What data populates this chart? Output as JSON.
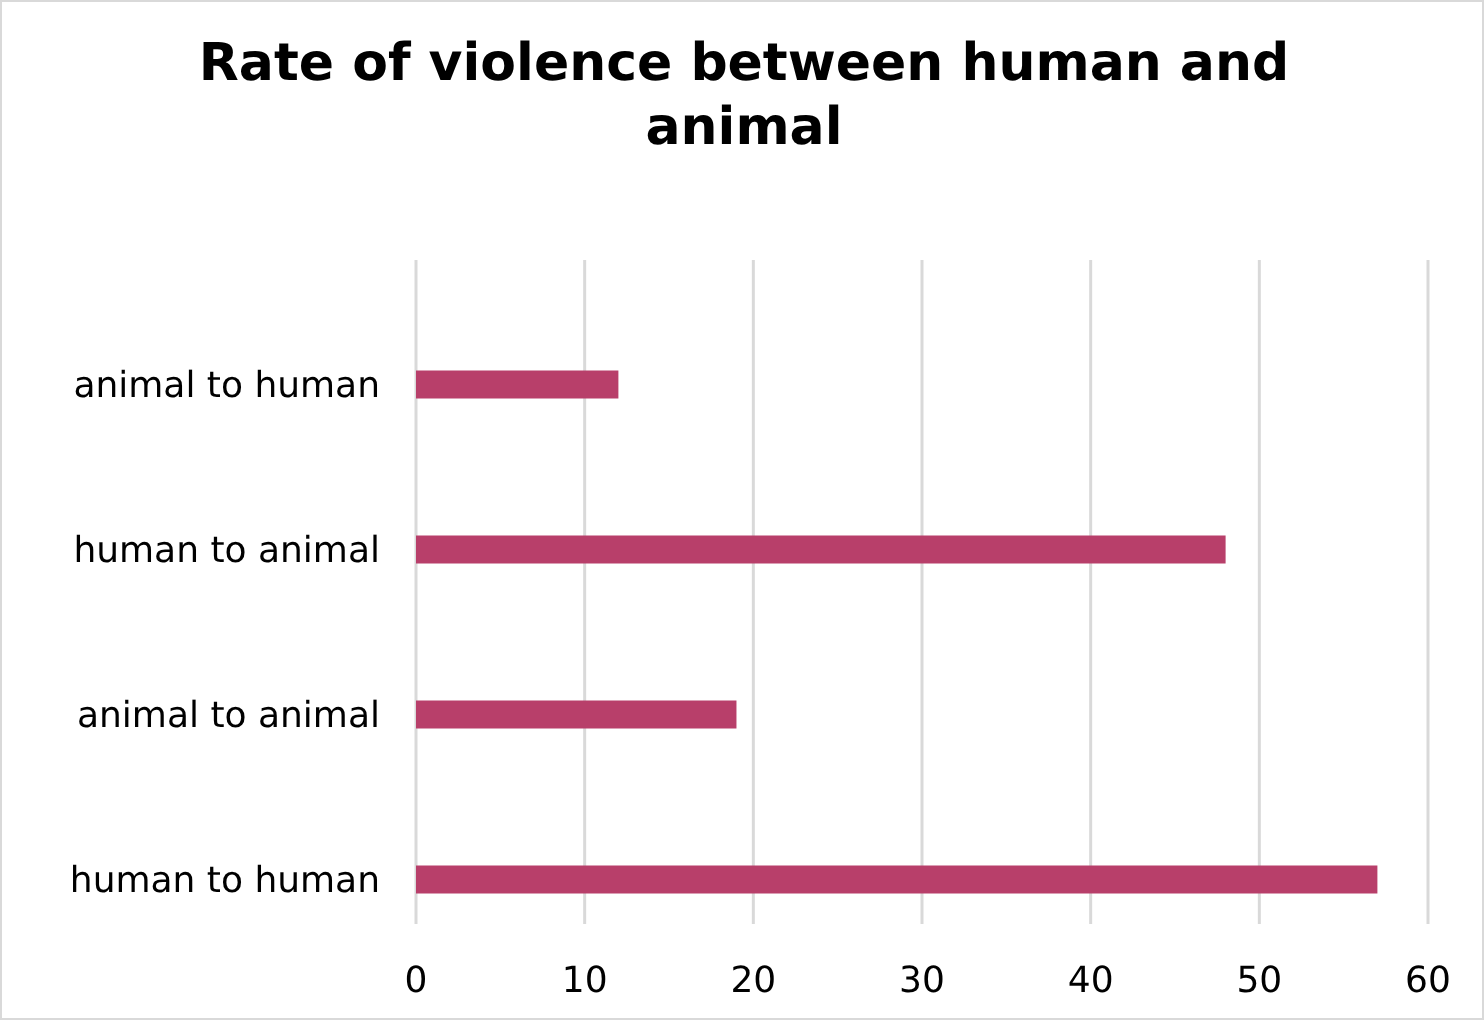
{
  "chart_data": {
    "type": "bar",
    "orientation": "horizontal",
    "title": "Rate of violence between human and animal",
    "categories": [
      "animal to human",
      "human to animal",
      "animal to animal",
      "human to human"
    ],
    "values": [
      12,
      48,
      19,
      57
    ],
    "color": "#b83f6a",
    "xlim": [
      0,
      60
    ],
    "xticks": [
      0,
      10,
      20,
      30,
      40,
      50,
      60
    ],
    "grid": "x"
  }
}
